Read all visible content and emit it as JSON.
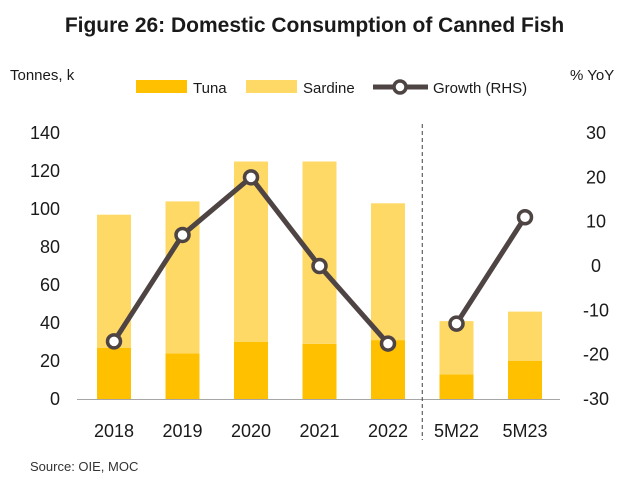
{
  "title": "Figure 26: Domestic Consumption  of Canned Fish",
  "source": "Source: OIE,  MOC",
  "chart_data": {
    "type": "bar",
    "categories": [
      "2018",
      "2019",
      "2020",
      "2021",
      "2022",
      "5M22",
      "5M23"
    ],
    "series": [
      {
        "name": "Tuna",
        "kind": "bar",
        "stack": "consumption",
        "axis": "left",
        "color": "#FFC000",
        "values": [
          27,
          24,
          30,
          29,
          31,
          13,
          20
        ]
      },
      {
        "name": "Sardine",
        "kind": "bar",
        "stack": "consumption",
        "axis": "left",
        "color": "#FFD966",
        "values": [
          70,
          80,
          95,
          96,
          72,
          28,
          26
        ]
      },
      {
        "name": "Growth (RHS)",
        "kind": "line",
        "axis": "right",
        "color": "#4D4443",
        "values": [
          -17,
          7,
          20,
          0,
          -17.5,
          -13,
          11
        ],
        "segments": [
          [
            0,
            4
          ],
          [
            5,
            6
          ]
        ]
      }
    ],
    "left_axis": {
      "label": "Tonnes, k",
      "ylim": [
        0,
        140
      ],
      "ticks": [
        0,
        20,
        40,
        60,
        80,
        100,
        120,
        140
      ]
    },
    "right_axis": {
      "label": "% YoY",
      "ylim": [
        -30,
        30
      ],
      "ticks": [
        30,
        20,
        10,
        0,
        -10,
        -20,
        -30
      ]
    },
    "separator_after_index": 4,
    "legend_position": "top",
    "grid": false
  }
}
